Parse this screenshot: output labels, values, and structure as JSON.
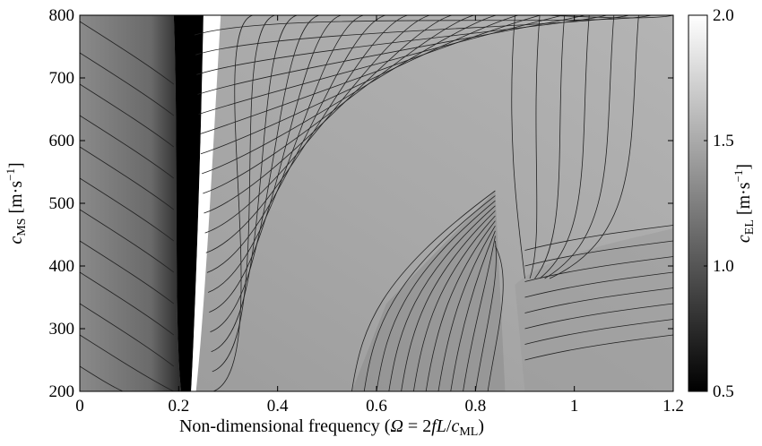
{
  "chart_data": {
    "type": "heatmap",
    "title": "",
    "xlabel": {
      "prefix": "Non-dimensional frequency (",
      "omega": "Ω",
      "mid": " = 2",
      "f": "f",
      "L": "L",
      "slash": "/",
      "c": "c",
      "sub": "ML",
      "suffix": ")"
    },
    "ylabel": {
      "c": "c",
      "sub": "MS",
      "unit": " [m·s",
      "exp": "−1",
      "close": "]"
    },
    "colorbar_label": {
      "c": "c",
      "sub": "EL",
      "unit": " [m·s",
      "exp": "−1",
      "close": "]"
    },
    "xlim": [
      0,
      1.2
    ],
    "ylim": [
      200,
      800
    ],
    "x_ticks": [
      0,
      0.2,
      0.4,
      0.6,
      0.8,
      1.0,
      1.2
    ],
    "x_tick_labels": [
      "0",
      "0.2",
      "0.4",
      "0.6",
      "0.8",
      "1",
      "1.2"
    ],
    "y_ticks": [
      200,
      300,
      400,
      500,
      600,
      700,
      800
    ],
    "y_tick_labels": [
      "200",
      "300",
      "400",
      "500",
      "600",
      "700",
      "800"
    ],
    "colorbar": {
      "min": 0.5,
      "max": 2.0,
      "ticks": [
        0.5,
        1.0,
        1.5,
        2.0
      ],
      "tick_labels": [
        "0.5",
        "1.0",
        "1.5",
        "2.0"
      ],
      "colormap": "grayscale (black = 0.5, white = 2.0)"
    },
    "regions": [
      {
        "description": "low-speed band, dark",
        "x_range": [
          0.18,
          0.24
        ],
        "value": 0.5
      },
      {
        "description": "high-speed band, white (saturated)",
        "x_range": [
          0.23,
          0.29
        ],
        "value": 2.0
      },
      {
        "description": "left region",
        "x_range": [
          0,
          0.18
        ],
        "value_range": [
          0.85,
          1.05
        ]
      },
      {
        "description": "right region",
        "x_range": [
          0.29,
          1.2
        ],
        "value_range": [
          1.1,
          1.6
        ]
      }
    ],
    "contour_lines": true,
    "grid": false,
    "colors": {
      "axes": "#000000",
      "background": "#ffffff",
      "contour": "#222222"
    }
  }
}
